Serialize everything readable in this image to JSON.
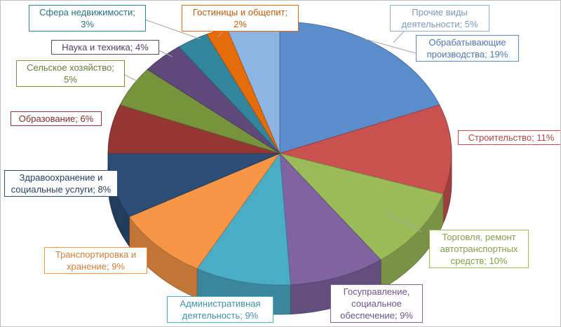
{
  "chart_data": {
    "type": "pie",
    "style": "3d",
    "title": "",
    "slices": [
      {
        "label": "Прочие виды деятельности",
        "value": 5,
        "text": "Прочие виды деятельности; 5%",
        "color": "#8eb4e3"
      },
      {
        "label": "Обрабатывающие производства",
        "value": 19,
        "text": "Обрабатывающие производства; 19%",
        "color": "#5b8ccb"
      },
      {
        "label": "Строительство",
        "value": 11,
        "text": "Строительство; 11%",
        "color": "#c9514f"
      },
      {
        "label": "Торговля, ремонт автотранспортных средств",
        "value": 10,
        "text": "Торговля, ремонт автотранспортных средств; 10%",
        "color": "#9bbb59"
      },
      {
        "label": "Госуправление, социальное обеспечение",
        "value": 9,
        "text": "Госуправление, социальное обеспечение; 9%",
        "color": "#8064a2"
      },
      {
        "label": "Административная деятельность",
        "value": 9,
        "text": "Административная деятельность; 9%",
        "color": "#4bacc6"
      },
      {
        "label": "Транспортировка и хранение",
        "value": 9,
        "text": "Транспортировка и хранение; 9%",
        "color": "#f79646"
      },
      {
        "label": "Здравоохранение и социальные услуги",
        "value": 8,
        "text": "Здравоохранение и социальные услуги; 8%",
        "color": "#2c4d75"
      },
      {
        "label": "Образование",
        "value": 6,
        "text": "Образование; 6%",
        "color": "#943634"
      },
      {
        "label": "Сельское хозяйство",
        "value": 5,
        "text": "Сельское хозяйство; 5%",
        "color": "#77933c"
      },
      {
        "label": "Наука и техника",
        "value": 4,
        "text": "Наука и техника; 4%",
        "color": "#5f497a"
      },
      {
        "label": "Сфера недвижимости",
        "value": 3,
        "text": "Сфера недвижимости; 3%",
        "color": "#31859c"
      },
      {
        "label": "Гостиницы и общепит",
        "value": 2,
        "text": "Гостиницы и общепит; 2%",
        "color": "#e46c0a"
      }
    ]
  }
}
